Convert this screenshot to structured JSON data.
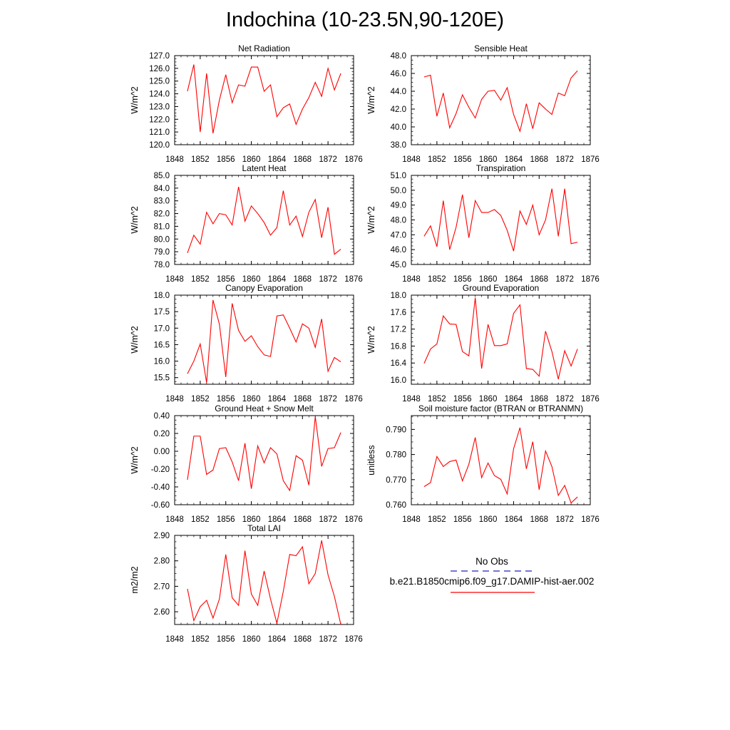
{
  "page_title": "Indochina (10-23.5N,90-120E)",
  "legend": {
    "entries": [
      {
        "label": "No Obs",
        "color": "#2020c0",
        "style": "dashed"
      },
      {
        "label": "b.e21.B1850cmip6.f09_g17.DAMIP-hist-aer.002",
        "color": "#ff0000",
        "style": "solid"
      }
    ]
  },
  "colors": {
    "series": "#ff0000",
    "axes": "#000000"
  },
  "chart_data": [
    {
      "type": "line",
      "title": "Net Radiation",
      "ylabel": "W/m^2",
      "xlim": [
        1848,
        1876
      ],
      "ylim": [
        120.0,
        127.0
      ],
      "xticks": [
        "1848",
        "1852",
        "1856",
        "1860",
        "1864",
        "1868",
        "1872",
        "1876"
      ],
      "yticks": [
        "120.0",
        "121.0",
        "122.0",
        "123.0",
        "124.0",
        "125.0",
        "126.0",
        "127.0"
      ],
      "x": [
        1850,
        1851,
        1852,
        1853,
        1854,
        1855,
        1856,
        1857,
        1858,
        1859,
        1860,
        1861,
        1862,
        1863,
        1864,
        1865,
        1866,
        1867,
        1868,
        1869,
        1870,
        1871,
        1872,
        1873,
        1874
      ],
      "series": [
        {
          "values": [
            124.2,
            126.3,
            121.0,
            125.6,
            120.9,
            123.5,
            125.5,
            123.3,
            124.7,
            124.6,
            126.1,
            126.1,
            124.2,
            124.7,
            122.2,
            122.9,
            123.2,
            121.6,
            122.8,
            123.7,
            124.9,
            123.8,
            126.0,
            124.3,
            125.6
          ]
        }
      ]
    },
    {
      "type": "line",
      "title": "Sensible Heat",
      "ylabel": "W/m^2",
      "xlim": [
        1848,
        1876
      ],
      "ylim": [
        38.0,
        48.0
      ],
      "xticks": [
        "1848",
        "1852",
        "1856",
        "1860",
        "1864",
        "1868",
        "1872",
        "1876"
      ],
      "yticks": [
        "38.0",
        "40.0",
        "42.0",
        "44.0",
        "46.0",
        "48.0"
      ],
      "x": [
        1850,
        1851,
        1852,
        1853,
        1854,
        1855,
        1856,
        1857,
        1858,
        1859,
        1860,
        1861,
        1862,
        1863,
        1864,
        1865,
        1866,
        1867,
        1868,
        1869,
        1870,
        1871,
        1872,
        1873,
        1874
      ],
      "series": [
        {
          "values": [
            45.6,
            45.8,
            41.2,
            43.8,
            39.9,
            41.5,
            43.6,
            42.2,
            41.0,
            43.1,
            44.0,
            44.1,
            43.0,
            44.4,
            41.4,
            39.5,
            42.6,
            39.8,
            42.7,
            42.0,
            41.4,
            43.8,
            43.5,
            45.5,
            46.3
          ]
        }
      ]
    },
    {
      "type": "line",
      "title": "Latent Heat",
      "ylabel": "W/m^2",
      "xlim": [
        1848,
        1876
      ],
      "ylim": [
        78.0,
        85.0
      ],
      "xticks": [
        "1848",
        "1852",
        "1856",
        "1860",
        "1864",
        "1868",
        "1872",
        "1876"
      ],
      "yticks": [
        "78.0",
        "79.0",
        "80.0",
        "81.0",
        "82.0",
        "83.0",
        "84.0",
        "85.0"
      ],
      "x": [
        1850,
        1851,
        1852,
        1853,
        1854,
        1855,
        1856,
        1857,
        1858,
        1859,
        1860,
        1861,
        1862,
        1863,
        1864,
        1865,
        1866,
        1867,
        1868,
        1869,
        1870,
        1871,
        1872,
        1873,
        1874
      ],
      "series": [
        {
          "values": [
            78.9,
            80.3,
            79.6,
            82.1,
            81.2,
            82.0,
            81.9,
            81.1,
            84.1,
            81.4,
            82.6,
            82.0,
            81.3,
            80.3,
            80.9,
            83.8,
            81.1,
            81.8,
            80.2,
            82.1,
            83.1,
            80.1,
            82.5,
            78.8,
            79.2
          ]
        }
      ]
    },
    {
      "type": "line",
      "title": "Transpiration",
      "ylabel": "W/m^2",
      "xlim": [
        1848,
        1876
      ],
      "ylim": [
        45.0,
        51.0
      ],
      "xticks": [
        "1848",
        "1852",
        "1856",
        "1860",
        "1864",
        "1868",
        "1872",
        "1876"
      ],
      "yticks": [
        "45.0",
        "46.0",
        "47.0",
        "48.0",
        "49.0",
        "50.0",
        "51.0"
      ],
      "x": [
        1850,
        1851,
        1852,
        1853,
        1854,
        1855,
        1856,
        1857,
        1858,
        1859,
        1860,
        1861,
        1862,
        1863,
        1864,
        1865,
        1866,
        1867,
        1868,
        1869,
        1870,
        1871,
        1872,
        1873,
        1874
      ],
      "series": [
        {
          "values": [
            46.9,
            47.6,
            46.2,
            49.3,
            46.0,
            47.5,
            49.7,
            46.8,
            49.3,
            48.5,
            48.5,
            48.7,
            48.3,
            47.3,
            45.9,
            48.6,
            47.7,
            49.0,
            47.0,
            48.0,
            50.1,
            46.9,
            50.1,
            46.4,
            46.5
          ]
        }
      ]
    },
    {
      "type": "line",
      "title": "Canopy Evaporation",
      "ylabel": "W/m^2",
      "xlim": [
        1848,
        1876
      ],
      "ylim": [
        15.3,
        18.0
      ],
      "xticks": [
        "1848",
        "1852",
        "1856",
        "1860",
        "1864",
        "1868",
        "1872",
        "1876"
      ],
      "yticks": [
        "15.5",
        "16.0",
        "16.5",
        "17.0",
        "17.5",
        "18.0"
      ],
      "x": [
        1850,
        1851,
        1852,
        1853,
        1854,
        1855,
        1856,
        1857,
        1858,
        1859,
        1860,
        1861,
        1862,
        1863,
        1864,
        1865,
        1866,
        1867,
        1868,
        1869,
        1870,
        1871,
        1872,
        1873,
        1874
      ],
      "series": [
        {
          "values": [
            15.62,
            16.0,
            16.52,
            15.35,
            17.85,
            17.12,
            15.52,
            17.75,
            16.93,
            16.6,
            16.77,
            16.44,
            16.19,
            16.14,
            17.37,
            17.4,
            17.0,
            16.58,
            17.13,
            17.0,
            16.42,
            17.28,
            15.69,
            16.11,
            15.98
          ]
        }
      ]
    },
    {
      "type": "line",
      "title": "Ground Evaporation",
      "ylabel": "W/m^2",
      "xlim": [
        1848,
        1876
      ],
      "ylim": [
        15.9,
        18.0
      ],
      "xticks": [
        "1848",
        "1852",
        "1856",
        "1860",
        "1864",
        "1868",
        "1872",
        "1876"
      ],
      "yticks": [
        "16.0",
        "16.4",
        "16.8",
        "17.2",
        "17.6",
        "18.0"
      ],
      "x": [
        1850,
        1851,
        1852,
        1853,
        1854,
        1855,
        1856,
        1857,
        1858,
        1859,
        1860,
        1861,
        1862,
        1863,
        1864,
        1865,
        1866,
        1867,
        1868,
        1869,
        1870,
        1871,
        1872,
        1873,
        1874
      ],
      "series": [
        {
          "values": [
            16.39,
            16.73,
            16.85,
            17.51,
            17.32,
            17.31,
            16.67,
            16.57,
            17.94,
            16.27,
            17.31,
            16.81,
            16.81,
            16.85,
            17.57,
            17.77,
            16.27,
            16.25,
            16.09,
            17.15,
            16.67,
            16.02,
            16.69,
            16.33,
            16.73
          ]
        }
      ]
    },
    {
      "type": "line",
      "title": "Ground Heat + Snow Melt",
      "ylabel": "W/m^2",
      "xlim": [
        1848,
        1876
      ],
      "ylim": [
        -0.6,
        0.4
      ],
      "xticks": [
        "1848",
        "1852",
        "1856",
        "1860",
        "1864",
        "1868",
        "1872",
        "1876"
      ],
      "yticks": [
        "-0.60",
        "-0.40",
        "-0.20",
        "0.00",
        "0.20",
        "0.40"
      ],
      "x": [
        1850,
        1851,
        1852,
        1853,
        1854,
        1855,
        1856,
        1857,
        1858,
        1859,
        1860,
        1861,
        1862,
        1863,
        1864,
        1865,
        1866,
        1867,
        1868,
        1869,
        1870,
        1871,
        1872,
        1873,
        1874
      ],
      "series": [
        {
          "values": [
            -0.32,
            0.17,
            0.17,
            -0.26,
            -0.21,
            0.03,
            0.04,
            -0.12,
            -0.33,
            0.09,
            -0.42,
            0.06,
            -0.13,
            0.04,
            -0.03,
            -0.33,
            -0.44,
            -0.05,
            -0.1,
            -0.38,
            0.39,
            -0.17,
            0.03,
            0.04,
            0.21
          ]
        }
      ]
    },
    {
      "type": "line",
      "title": "Soil moisture factor (BTRAN or BTRANMN)",
      "ylabel": "unitless",
      "xlim": [
        1848,
        1876
      ],
      "ylim": [
        0.76,
        0.7955
      ],
      "xticks": [
        "1848",
        "1852",
        "1856",
        "1860",
        "1864",
        "1868",
        "1872",
        "1876"
      ],
      "yticks": [
        "0.760",
        "0.770",
        "0.780",
        "0.790"
      ],
      "x": [
        1850,
        1851,
        1852,
        1853,
        1854,
        1855,
        1856,
        1857,
        1858,
        1859,
        1860,
        1861,
        1862,
        1863,
        1864,
        1865,
        1866,
        1867,
        1868,
        1869,
        1870,
        1871,
        1872,
        1873,
        1874
      ],
      "series": [
        {
          "values": [
            0.7672,
            0.7688,
            0.7792,
            0.7752,
            0.7772,
            0.7778,
            0.7695,
            0.7761,
            0.7868,
            0.7708,
            0.7766,
            0.7716,
            0.7701,
            0.7643,
            0.7823,
            0.7907,
            0.7743,
            0.7851,
            0.766,
            0.7814,
            0.7752,
            0.7637,
            0.7677,
            0.7607,
            0.7631
          ]
        }
      ]
    },
    {
      "type": "line",
      "title": "Total LAI",
      "ylabel": "m2/m2",
      "xlim": [
        1848,
        1876
      ],
      "ylim": [
        2.55,
        2.9
      ],
      "xticks": [
        "1848",
        "1852",
        "1856",
        "1860",
        "1864",
        "1868",
        "1872",
        "1876"
      ],
      "yticks": [
        "2.60",
        "2.70",
        "2.80",
        "2.90"
      ],
      "x": [
        1850,
        1851,
        1852,
        1853,
        1854,
        1855,
        1856,
        1857,
        1858,
        1859,
        1860,
        1861,
        1862,
        1863,
        1864,
        1865,
        1866,
        1867,
        1868,
        1869,
        1870,
        1871,
        1872,
        1873,
        1874
      ],
      "series": [
        {
          "values": [
            2.69,
            2.565,
            2.62,
            2.645,
            2.575,
            2.65,
            2.825,
            2.655,
            2.625,
            2.84,
            2.67,
            2.625,
            2.76,
            2.65,
            2.555,
            2.68,
            2.825,
            2.82,
            2.855,
            2.71,
            2.75,
            2.88,
            2.745,
            2.66,
            2.55
          ]
        }
      ]
    }
  ]
}
